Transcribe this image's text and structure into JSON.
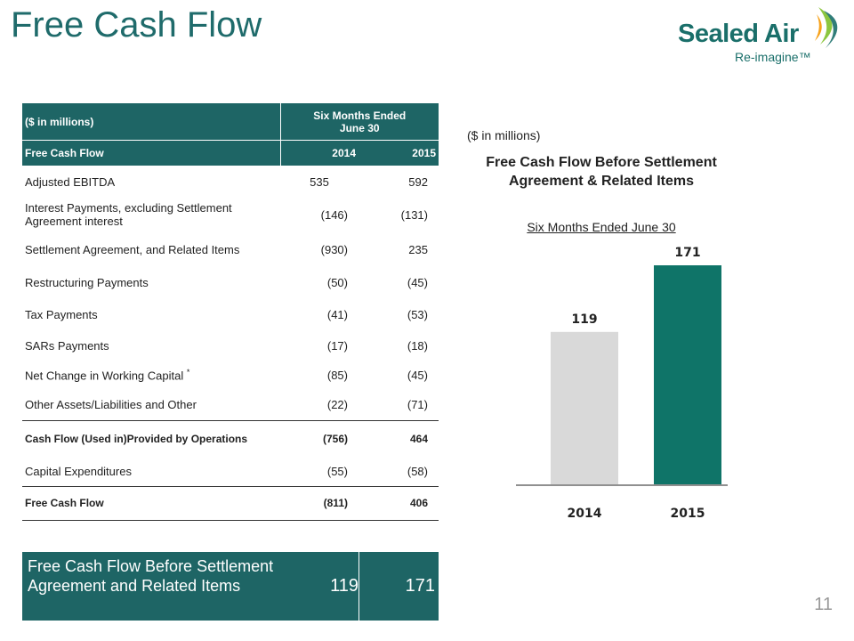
{
  "slide": {
    "title": "Free Cash Flow",
    "page_number": "11",
    "logo": {
      "name": "Sealed Air",
      "tagline": "Re-imagine™"
    }
  },
  "table": {
    "header_units": "($ in millions)",
    "header_period": "Six Months Ended June 30",
    "subheader_label": "Free Cash Flow",
    "year1": "2014",
    "year2": "2015",
    "rows": [
      {
        "label": "Adjusted EBITDA",
        "v1": "535",
        "v2": "592"
      },
      {
        "label": "Interest Payments, excluding Settlement Agreement interest",
        "v1": "(146)",
        "v2": "(131)"
      },
      {
        "label": "Settlement Agreement, and Related Items",
        "v1": "(930)",
        "v2": "235"
      },
      {
        "label": "Restructuring Payments",
        "v1": "(50)",
        "v2": "(45)"
      },
      {
        "label": "Tax Payments",
        "v1": "(41)",
        "v2": "(53)"
      },
      {
        "label": "SARs Payments",
        "v1": "(17)",
        "v2": "(18)"
      },
      {
        "label": "Net Change in Working Capital",
        "marker": "*",
        "v1": "(85)",
        "v2": "(45)"
      },
      {
        "label": "Other Assets/Liabilities and Other",
        "v1": "(22)",
        "v2": "(71)"
      },
      {
        "label": "Cash Flow (Used in)Provided by Operations",
        "v1": "(756)",
        "v2": "464"
      },
      {
        "label": "Capital Expenditures",
        "v1": "(55)",
        "v2": "(58)"
      },
      {
        "label": "Free Cash Flow",
        "v1": "(811)",
        "v2": "406"
      }
    ],
    "bottom": {
      "label": "Free Cash Flow Before Settlement Agreement and Related Items",
      "v1": "119",
      "v2": "171"
    }
  },
  "chart_data": {
    "type": "bar",
    "units_note": "($ in millions)",
    "title": "Free Cash Flow Before Settlement Agreement & Related Items",
    "subtitle": "Six Months Ended June 30",
    "categories": [
      "2014",
      "2015"
    ],
    "values": [
      119,
      171
    ],
    "colors": [
      "#d9d9d9",
      "#0f7468"
    ],
    "ylim": [
      0,
      171
    ],
    "grid": false,
    "legend": "none"
  }
}
